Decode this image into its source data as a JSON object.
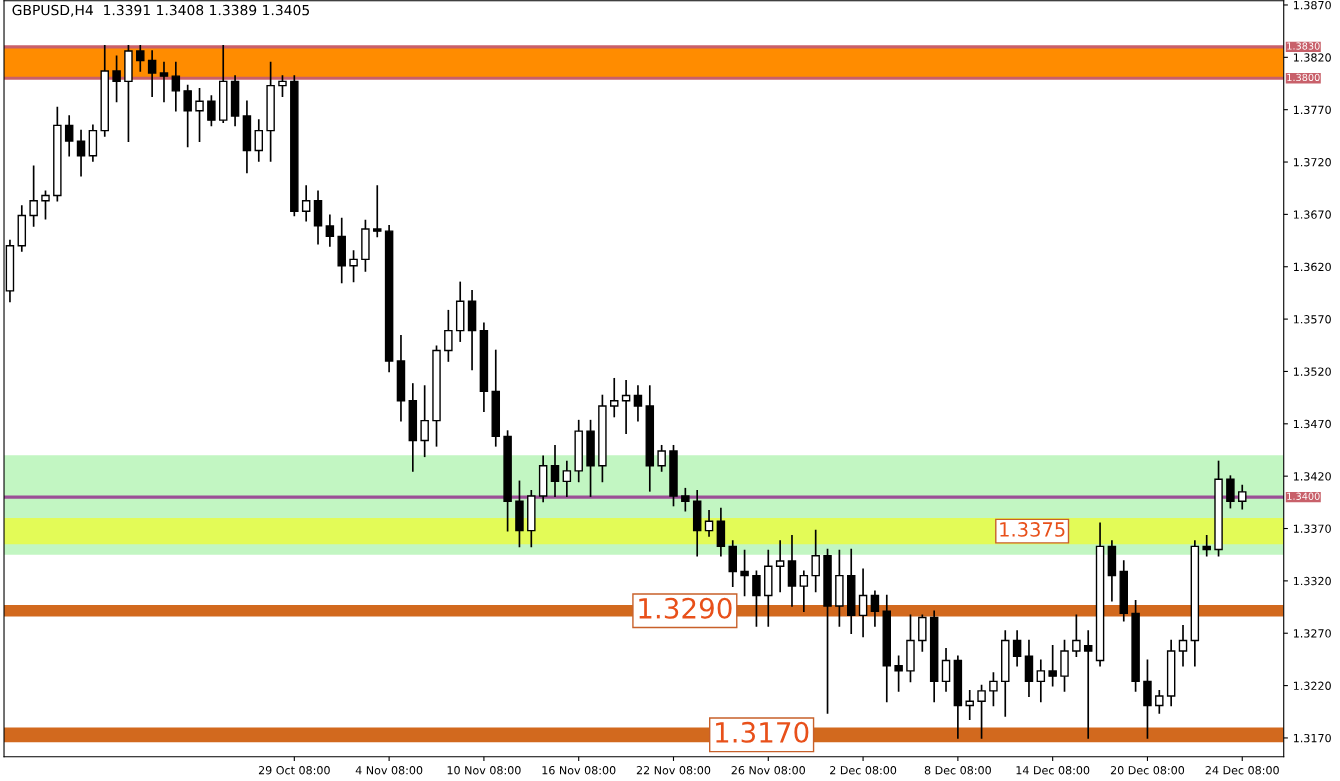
{
  "chart_data": {
    "type": "candlestick",
    "title": "GBPUSD,H4  1.3391 1.3408 1.3389 1.3405",
    "categories": [
      null,
      null,
      null,
      null,
      null,
      null,
      null,
      null,
      null,
      null,
      null,
      null,
      null,
      null,
      null,
      null,
      null,
      null,
      null,
      null,
      null,
      null,
      null,
      null,
      "29 Oct 08:00",
      null,
      null,
      null,
      null,
      null,
      null,
      null,
      "4 Nov 08:00",
      null,
      null,
      null,
      null,
      null,
      null,
      null,
      "10 Nov 08:00",
      null,
      null,
      null,
      null,
      null,
      null,
      null,
      "16 Nov 08:00",
      null,
      null,
      null,
      null,
      null,
      null,
      null,
      "22 Nov 08:00",
      null,
      null,
      null,
      null,
      null,
      null,
      null,
      "26 Nov 08:00",
      null,
      null,
      null,
      null,
      null,
      null,
      null,
      "2 Dec 08:00",
      null,
      null,
      null,
      null,
      null,
      null,
      null,
      "8 Dec 08:00",
      null,
      null,
      null,
      null,
      null,
      null,
      null,
      "14 Dec 08:00",
      null,
      null,
      null,
      null,
      null,
      null,
      null,
      "20 Dec 08:00",
      null,
      null,
      null,
      null,
      null,
      null,
      null,
      "24 Dec 08:00"
    ],
    "ohlc": [
      [
        1.3597,
        1.3645,
        1.3587,
        1.364
      ],
      [
        1.364,
        1.3678,
        1.3635,
        1.3669
      ],
      [
        1.3669,
        1.3716,
        1.3659,
        1.3683
      ],
      [
        1.3683,
        1.3692,
        1.3666,
        1.3688
      ],
      [
        1.3688,
        1.3772,
        1.3683,
        1.3755
      ],
      [
        1.3755,
        1.3764,
        1.3726,
        1.374
      ],
      [
        1.374,
        1.375,
        1.3707,
        1.3726
      ],
      [
        1.3726,
        1.3755,
        1.3721,
        1.375
      ],
      [
        1.375,
        1.3831,
        1.3745,
        1.3807
      ],
      [
        1.3807,
        1.3821,
        1.3778,
        1.3797
      ],
      [
        1.3797,
        1.3831,
        1.374,
        1.3826
      ],
      [
        1.3826,
        1.3831,
        1.3807,
        1.3817
      ],
      [
        1.3817,
        1.3826,
        1.3783,
        1.3805
      ],
      [
        1.3805,
        1.3815,
        1.3778,
        1.3802
      ],
      [
        1.3802,
        1.3815,
        1.3769,
        1.3788
      ],
      [
        1.3788,
        1.3793,
        1.3735,
        1.3769
      ],
      [
        1.3769,
        1.379,
        1.374,
        1.3778
      ],
      [
        1.3778,
        1.3783,
        1.3755,
        1.376
      ],
      [
        1.376,
        1.3831,
        1.3758,
        1.3797
      ],
      [
        1.3797,
        1.3802,
        1.3755,
        1.3764
      ],
      [
        1.3764,
        1.3778,
        1.371,
        1.3731
      ],
      [
        1.3731,
        1.376,
        1.3721,
        1.375
      ],
      [
        1.375,
        1.3815,
        1.3721,
        1.3793
      ],
      [
        1.3793,
        1.3802,
        1.3783,
        1.3797
      ],
      [
        1.3797,
        1.3802,
        1.3669,
        1.3673
      ],
      [
        1.3673,
        1.3697,
        1.3664,
        1.3683
      ],
      [
        1.3683,
        1.3692,
        1.3642,
        1.3659
      ],
      [
        1.3659,
        1.3669,
        1.364,
        1.3649
      ],
      [
        1.3649,
        1.3666,
        1.3605,
        1.3621
      ],
      [
        1.3621,
        1.3635,
        1.3606,
        1.3627
      ],
      [
        1.3627,
        1.3664,
        1.3616,
        1.3656
      ],
      [
        1.3656,
        1.3697,
        1.3649,
        1.3654
      ],
      [
        1.3654,
        1.3659,
        1.352,
        1.353
      ],
      [
        1.353,
        1.3554,
        1.3473,
        1.3492
      ],
      [
        1.3492,
        1.3508,
        1.3425,
        1.3454
      ],
      [
        1.3454,
        1.3506,
        1.3439,
        1.3473
      ],
      [
        1.3473,
        1.3544,
        1.3449,
        1.354
      ],
      [
        1.354,
        1.3578,
        1.353,
        1.3559
      ],
      [
        1.3559,
        1.3605,
        1.3549,
        1.3587
      ],
      [
        1.3587,
        1.3597,
        1.3522,
        1.3559
      ],
      [
        1.3559,
        1.3566,
        1.3482,
        1.3501
      ],
      [
        1.3501,
        1.354,
        1.3449,
        1.3458
      ],
      [
        1.3458,
        1.3463,
        1.3368,
        1.3396
      ],
      [
        1.3396,
        1.3415,
        1.3353,
        1.3368
      ],
      [
        1.3368,
        1.3406,
        1.3353,
        1.3401
      ],
      [
        1.3401,
        1.3439,
        1.3396,
        1.343
      ],
      [
        1.343,
        1.3449,
        1.3401,
        1.3415
      ],
      [
        1.3415,
        1.3434,
        1.3401,
        1.3425
      ],
      [
        1.3425,
        1.3473,
        1.3415,
        1.3463
      ],
      [
        1.3463,
        1.3473,
        1.3401,
        1.343
      ],
      [
        1.343,
        1.3497,
        1.3415,
        1.3487
      ],
      [
        1.3487,
        1.3513,
        1.3477,
        1.3492
      ],
      [
        1.3492,
        1.3511,
        1.3461,
        1.3497
      ],
      [
        1.3497,
        1.3506,
        1.3473,
        1.3487
      ],
      [
        1.3487,
        1.3506,
        1.3406,
        1.343
      ],
      [
        1.343,
        1.3449,
        1.3425,
        1.3444
      ],
      [
        1.3444,
        1.3449,
        1.3392,
        1.3401
      ],
      [
        1.3401,
        1.3408,
        1.3387,
        1.3396
      ],
      [
        1.3396,
        1.3406,
        1.3344,
        1.3368
      ],
      [
        1.3368,
        1.3387,
        1.3363,
        1.3377
      ],
      [
        1.3377,
        1.3389,
        1.3344,
        1.3353
      ],
      [
        1.3353,
        1.3358,
        1.3315,
        1.3329
      ],
      [
        1.3329,
        1.3349,
        1.3306,
        1.3325
      ],
      [
        1.3325,
        1.3329,
        1.3277,
        1.3306
      ],
      [
        1.3306,
        1.3349,
        1.3277,
        1.3334
      ],
      [
        1.3334,
        1.3358,
        1.331,
        1.3339
      ],
      [
        1.3339,
        1.3363,
        1.3296,
        1.3315
      ],
      [
        1.3315,
        1.3329,
        1.3291,
        1.3325
      ],
      [
        1.3325,
        1.3368,
        1.331,
        1.3344
      ],
      [
        1.3344,
        1.335,
        1.3194,
        1.3296
      ],
      [
        1.3296,
        1.3349,
        1.3277,
        1.3325
      ],
      [
        1.3325,
        1.335,
        1.327,
        1.3287
      ],
      [
        1.3287,
        1.3331,
        1.3267,
        1.3306
      ],
      [
        1.3306,
        1.331,
        1.3277,
        1.3291
      ],
      [
        1.3291,
        1.3306,
        1.3205,
        1.3239
      ],
      [
        1.3239,
        1.3248,
        1.3215,
        1.3234
      ],
      [
        1.3234,
        1.3287,
        1.3224,
        1.3263
      ],
      [
        1.3263,
        1.3287,
        1.3253,
        1.3285
      ],
      [
        1.3285,
        1.3291,
        1.3205,
        1.3224
      ],
      [
        1.3224,
        1.3255,
        1.3215,
        1.3244
      ],
      [
        1.3244,
        1.3248,
        1.317,
        1.3201
      ],
      [
        1.3201,
        1.3215,
        1.3188,
        1.3205
      ],
      [
        1.3205,
        1.322,
        1.317,
        1.3215
      ],
      [
        1.3215,
        1.3232,
        1.3201,
        1.3224
      ],
      [
        1.3224,
        1.3272,
        1.3191,
        1.3263
      ],
      [
        1.3263,
        1.3272,
        1.3239,
        1.3248
      ],
      [
        1.3248,
        1.3263,
        1.321,
        1.3224
      ],
      [
        1.3224,
        1.3244,
        1.3205,
        1.3234
      ],
      [
        1.3234,
        1.3258,
        1.322,
        1.3229
      ],
      [
        1.3229,
        1.3263,
        1.3215,
        1.3253
      ],
      [
        1.3253,
        1.3287,
        1.3248,
        1.3263
      ],
      [
        1.3258,
        1.3272,
        1.317,
        1.3253
      ],
      [
        1.3244,
        1.3375,
        1.3239,
        1.3353
      ],
      [
        1.3353,
        1.3358,
        1.3301,
        1.3325
      ],
      [
        1.3329,
        1.3339,
        1.3282,
        1.3289
      ],
      [
        1.3289,
        1.3301,
        1.3215,
        1.3224
      ],
      [
        1.3224,
        1.3244,
        1.317,
        1.3201
      ],
      [
        1.3201,
        1.3215,
        1.3194,
        1.321
      ],
      [
        1.321,
        1.3263,
        1.3201,
        1.3253
      ],
      [
        1.3253,
        1.3277,
        1.3239,
        1.3263
      ],
      [
        1.3263,
        1.3358,
        1.3239,
        1.3353
      ],
      [
        1.3353,
        1.3363,
        1.3344,
        1.335
      ],
      [
        1.335,
        1.3434,
        1.3344,
        1.3417
      ],
      [
        1.3417,
        1.342,
        1.339,
        1.3396
      ],
      [
        1.3396,
        1.3411,
        1.3389,
        1.3405
      ]
    ],
    "ylim": [
      1.3152,
      1.3874
    ],
    "yticks": [
      {
        "value": 1.317,
        "label": "1.3170"
      },
      {
        "value": 1.322,
        "label": "1.3220"
      },
      {
        "value": 1.327,
        "label": "1.3270"
      },
      {
        "value": 1.332,
        "label": "1.3320"
      },
      {
        "value": 1.337,
        "label": "1.3370"
      },
      {
        "value": 1.342,
        "label": "1.3420"
      },
      {
        "value": 1.347,
        "label": "1.3470"
      },
      {
        "value": 1.352,
        "label": "1.3520"
      },
      {
        "value": 1.357,
        "label": "1.3570"
      },
      {
        "value": 1.362,
        "label": "1.3620"
      },
      {
        "value": 1.367,
        "label": "1.3670"
      },
      {
        "value": 1.372,
        "label": "1.3720"
      },
      {
        "value": 1.377,
        "label": "1.3770"
      },
      {
        "value": 1.382,
        "label": "1.3820"
      },
      {
        "value": 1.387,
        "label": "1.3870"
      }
    ],
    "ref_lines": [
      {
        "axis": "y",
        "value": 1.383,
        "label": "1.3830",
        "color": "#c8606a"
      },
      {
        "axis": "y",
        "value": 1.38,
        "label": "1.3800",
        "color": "#c8606a"
      },
      {
        "axis": "y",
        "value": 1.34,
        "label": "1.3400",
        "color": "#9b4f96"
      }
    ],
    "bands": [
      {
        "axis": "y",
        "from": 1.38,
        "to": 1.383,
        "color": "#ff8c00"
      },
      {
        "axis": "y",
        "from": 1.3286,
        "to": 1.3297,
        "label": "1.3290",
        "color": "#d2691e"
      },
      {
        "axis": "y",
        "from": 1.3166,
        "to": 1.318,
        "label": "1.3170",
        "color": "#d2691e"
      },
      {
        "axis": "y",
        "from": 1.3345,
        "to": 1.344,
        "color": "#90ee90"
      },
      {
        "axis": "y",
        "from": 1.3355,
        "to": 1.338,
        "label": "1.3375",
        "color": "#ffff00"
      }
    ],
    "grid": false,
    "legend": false
  }
}
